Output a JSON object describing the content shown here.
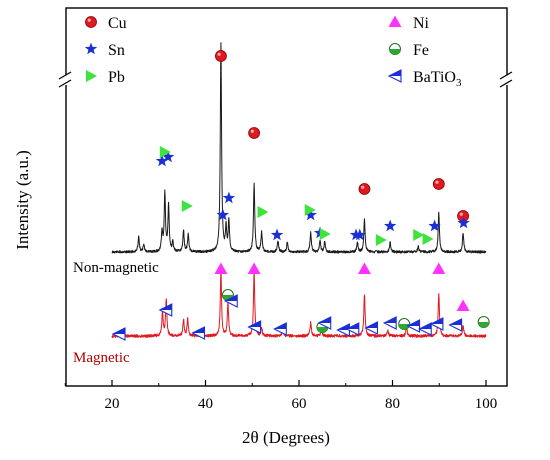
{
  "chart_data": {
    "type": "line",
    "xlabel": "2θ (Degrees)",
    "ylabel": "Intensity (a.u.)",
    "xlim": [
      10,
      102
    ],
    "x_ticks": [
      20,
      40,
      60,
      80,
      100
    ],
    "y_ticks_shown": false,
    "grid": false,
    "legend_position": "top (two columns)",
    "series": [
      {
        "name": "Non-magnetic",
        "color": "#1a1a1a",
        "baseline": 0,
        "peaks": [
          {
            "x": 25.7,
            "y": 0.8
          },
          {
            "x": 26.8,
            "y": 0.4
          },
          {
            "x": 30.7,
            "y": 1.0
          },
          {
            "x": 31.3,
            "y": 3.0
          },
          {
            "x": 32.1,
            "y": 2.4
          },
          {
            "x": 33.0,
            "y": 0.5
          },
          {
            "x": 35.3,
            "y": 1.1
          },
          {
            "x": 36.3,
            "y": 0.9
          },
          {
            "x": 43.3,
            "y": 10.7
          },
          {
            "x": 44.4,
            "y": 1.2
          },
          {
            "x": 45.0,
            "y": 1.6
          },
          {
            "x": 50.4,
            "y": 3.5
          },
          {
            "x": 52.0,
            "y": 1.0
          },
          {
            "x": 55.5,
            "y": 0.6
          },
          {
            "x": 57.5,
            "y": 0.5
          },
          {
            "x": 62.5,
            "y": 1.0
          },
          {
            "x": 64.5,
            "y": 0.6
          },
          {
            "x": 65.5,
            "y": 0.5
          },
          {
            "x": 72.5,
            "y": 0.5
          },
          {
            "x": 74.0,
            "y": 1.7
          },
          {
            "x": 79.5,
            "y": 0.5
          },
          {
            "x": 85.5,
            "y": 0.3
          },
          {
            "x": 89.9,
            "y": 2.0
          },
          {
            "x": 95.1,
            "y": 1.0
          }
        ]
      },
      {
        "name": "Magnetic",
        "color": "#e0181f",
        "baseline": 0,
        "peaks": [
          {
            "x": 30.8,
            "y": 0.9
          },
          {
            "x": 31.6,
            "y": 1.3
          },
          {
            "x": 35.3,
            "y": 0.6
          },
          {
            "x": 36.2,
            "y": 0.6
          },
          {
            "x": 43.3,
            "y": 2.3
          },
          {
            "x": 44.8,
            "y": 1.2
          },
          {
            "x": 50.4,
            "y": 2.3
          },
          {
            "x": 52.0,
            "y": 0.3
          },
          {
            "x": 56.5,
            "y": 0.3
          },
          {
            "x": 62.5,
            "y": 0.5
          },
          {
            "x": 64.8,
            "y": 0.3
          },
          {
            "x": 74.0,
            "y": 1.5
          },
          {
            "x": 79.0,
            "y": 0.2
          },
          {
            "x": 83.0,
            "y": 0.3
          },
          {
            "x": 89.9,
            "y": 1.5
          },
          {
            "x": 95.1,
            "y": 0.4
          }
        ]
      }
    ],
    "legend": [
      {
        "label": "Cu",
        "marker": "circle",
        "color": "#e0181f"
      },
      {
        "label": "Sn",
        "marker": "star",
        "color": "#1a2fd6"
      },
      {
        "label": "Pb",
        "marker": "triangle-right",
        "color": "#3ee33e"
      },
      {
        "label": "Ni",
        "marker": "triangle-up",
        "color": "#ff33ff"
      },
      {
        "label": "Fe",
        "marker": "half-circle",
        "color": "#2ea82e"
      },
      {
        "label": "BaTiO3",
        "marker": "half-triangle-left",
        "color": "#1a2fd6"
      }
    ],
    "series_labels": {
      "upper": "Non-magnetic",
      "lower": "Magnetic"
    },
    "phase_markers_upper": {
      "Cu": [
        43.3,
        50.4,
        74.0,
        89.9,
        95.1
      ],
      "Sn": [
        30.7,
        32.0,
        43.7,
        45.0,
        55.3,
        62.5,
        64.5,
        72.2,
        73.0,
        79.5,
        89.0,
        95.2
      ],
      "Pb": [
        31.3,
        36.0,
        52.2,
        62.3,
        65.5,
        77.5,
        85.5,
        87.5
      ]
    },
    "phase_markers_lower": {
      "Ni": [
        43.3,
        50.4,
        74.0,
        89.9,
        95.1
      ],
      "Fe": [
        44.8,
        65.0,
        82.5,
        99.5
      ],
      "BaTiO3": [
        21.5,
        31.5,
        38.5,
        45.0,
        50.5,
        56.0,
        65.5,
        69.5,
        71.5,
        75.5,
        79.5,
        84.5,
        87.0,
        89.5,
        93.5
      ]
    }
  }
}
